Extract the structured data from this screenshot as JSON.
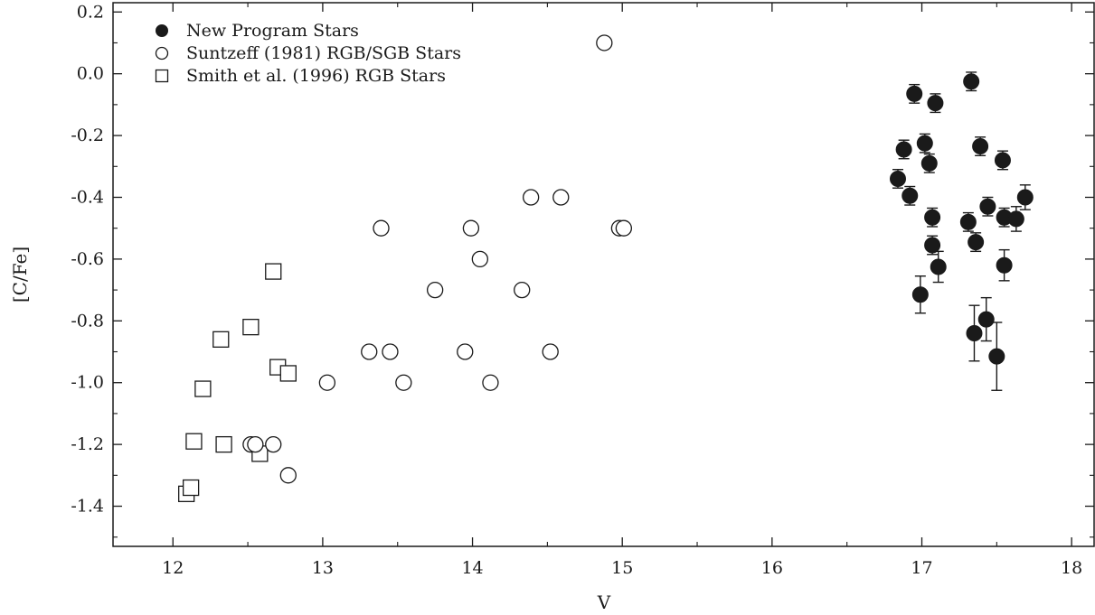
{
  "chart_data": {
    "type": "scatter",
    "title": "",
    "xlabel": "V",
    "ylabel": "[C/Fe]",
    "xlim": [
      11.6,
      18.15
    ],
    "ylim": [
      -1.53,
      0.23
    ],
    "x_ticks": [
      12,
      13,
      14,
      15,
      16,
      17,
      18
    ],
    "x_tick_labels": [
      "12",
      "13",
      "14",
      "15",
      "16",
      "17",
      "18"
    ],
    "y_ticks": [
      0.2,
      0.0,
      -0.2,
      -0.4,
      -0.6,
      -0.8,
      -1.0,
      -1.2,
      -1.4
    ],
    "y_tick_labels": [
      "0.2",
      "0.0",
      "-0.2",
      "-0.4",
      "-0.6",
      "-0.8",
      "-1.0",
      "-1.2",
      "-1.4"
    ],
    "grid": false,
    "legend_position": "top-left",
    "series": [
      {
        "name": "New Program Stars",
        "marker": "filled-circle",
        "color": "#1a1a1a",
        "points": [
          {
            "x": 16.84,
            "y": -0.34,
            "err": 0.03
          },
          {
            "x": 16.88,
            "y": -0.245,
            "err": 0.03
          },
          {
            "x": 16.92,
            "y": -0.395,
            "err": 0.03
          },
          {
            "x": 16.95,
            "y": -0.065,
            "err": 0.03
          },
          {
            "x": 16.99,
            "y": -0.715,
            "err": 0.06
          },
          {
            "x": 17.02,
            "y": -0.225,
            "err": 0.03
          },
          {
            "x": 17.05,
            "y": -0.29,
            "err": 0.03
          },
          {
            "x": 17.07,
            "y": -0.465,
            "err": 0.03
          },
          {
            "x": 17.07,
            "y": -0.555,
            "err": 0.03
          },
          {
            "x": 17.09,
            "y": -0.095,
            "err": 0.03
          },
          {
            "x": 17.11,
            "y": -0.625,
            "err": 0.05
          },
          {
            "x": 17.31,
            "y": -0.48,
            "err": 0.03
          },
          {
            "x": 17.33,
            "y": -0.025,
            "err": 0.03
          },
          {
            "x": 17.35,
            "y": -0.84,
            "err": 0.09
          },
          {
            "x": 17.36,
            "y": -0.545,
            "err": 0.03
          },
          {
            "x": 17.39,
            "y": -0.235,
            "err": 0.03
          },
          {
            "x": 17.43,
            "y": -0.795,
            "err": 0.07
          },
          {
            "x": 17.44,
            "y": -0.43,
            "err": 0.03
          },
          {
            "x": 17.5,
            "y": -0.915,
            "err": 0.11
          },
          {
            "x": 17.54,
            "y": -0.28,
            "err": 0.03
          },
          {
            "x": 17.55,
            "y": -0.465,
            "err": 0.03
          },
          {
            "x": 17.55,
            "y": -0.62,
            "err": 0.05
          },
          {
            "x": 17.63,
            "y": -0.47,
            "err": 0.04
          },
          {
            "x": 17.69,
            "y": -0.4,
            "err": 0.04
          }
        ]
      },
      {
        "name": "Suntzeff (1981) RGB/SGB Stars",
        "marker": "open-circle",
        "color": "#1a1a1a",
        "points": [
          {
            "x": 12.52,
            "y": -1.2
          },
          {
            "x": 12.55,
            "y": -1.2
          },
          {
            "x": 12.67,
            "y": -1.2
          },
          {
            "x": 12.77,
            "y": -1.3
          },
          {
            "x": 13.03,
            "y": -1.0
          },
          {
            "x": 13.31,
            "y": -0.9
          },
          {
            "x": 13.39,
            "y": -0.5
          },
          {
            "x": 13.45,
            "y": -0.9
          },
          {
            "x": 13.54,
            "y": -1.0
          },
          {
            "x": 13.75,
            "y": -0.7
          },
          {
            "x": 13.95,
            "y": -0.9
          },
          {
            "x": 13.99,
            "y": -0.5
          },
          {
            "x": 14.05,
            "y": -0.6
          },
          {
            "x": 14.12,
            "y": -1.0
          },
          {
            "x": 14.33,
            "y": -0.7
          },
          {
            "x": 14.39,
            "y": -0.4
          },
          {
            "x": 14.52,
            "y": -0.9
          },
          {
            "x": 14.59,
            "y": -0.4
          },
          {
            "x": 14.88,
            "y": 0.1
          },
          {
            "x": 14.98,
            "y": -0.5
          },
          {
            "x": 15.01,
            "y": -0.5
          }
        ]
      },
      {
        "name": "Smith et al. (1996) RGB Stars",
        "marker": "open-square",
        "color": "#1a1a1a",
        "points": [
          {
            "x": 12.09,
            "y": -1.36
          },
          {
            "x": 12.12,
            "y": -1.34
          },
          {
            "x": 12.14,
            "y": -1.19
          },
          {
            "x": 12.2,
            "y": -1.02
          },
          {
            "x": 12.32,
            "y": -0.86
          },
          {
            "x": 12.34,
            "y": -1.2
          },
          {
            "x": 12.52,
            "y": -0.82
          },
          {
            "x": 12.58,
            "y": -1.23
          },
          {
            "x": 12.67,
            "y": -0.64
          },
          {
            "x": 12.7,
            "y": -0.95
          },
          {
            "x": 12.77,
            "y": -0.97
          }
        ]
      }
    ]
  }
}
